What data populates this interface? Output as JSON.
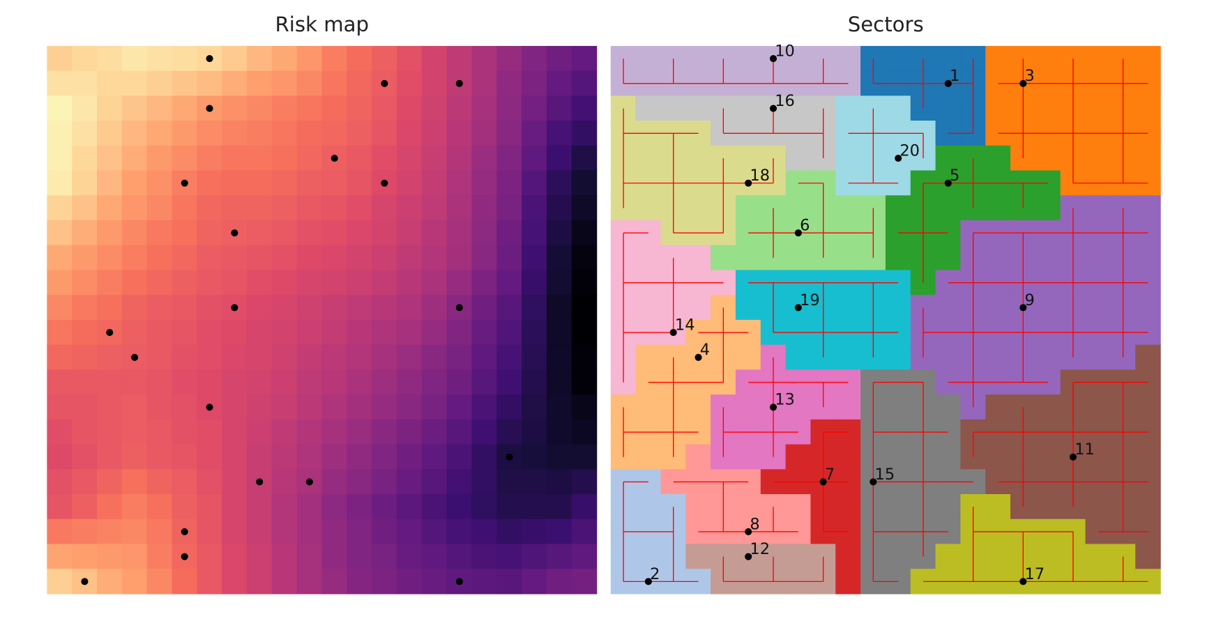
{
  "chart_data": [
    {
      "type": "heatmap",
      "title": "Risk map",
      "colormap": "magma",
      "zlim": [
        0,
        1
      ],
      "xlim": [
        -0.5,
        21.5
      ],
      "ylim": [
        21.5,
        -0.5
      ],
      "z": [
        [
          0.9,
          0.92,
          0.93,
          0.95,
          0.94,
          0.93,
          0.92,
          0.89,
          0.85,
          0.82,
          0.78,
          0.73,
          0.69,
          0.66,
          0.62,
          0.57,
          0.52,
          0.47,
          0.42,
          0.37,
          0.33,
          0.3
        ],
        [
          0.94,
          0.94,
          0.92,
          0.92,
          0.9,
          0.88,
          0.86,
          0.83,
          0.8,
          0.78,
          0.75,
          0.71,
          0.68,
          0.65,
          0.61,
          0.57,
          0.52,
          0.47,
          0.41,
          0.36,
          0.3,
          0.26
        ],
        [
          0.98,
          0.95,
          0.91,
          0.88,
          0.85,
          0.82,
          0.79,
          0.77,
          0.75,
          0.73,
          0.71,
          0.69,
          0.67,
          0.64,
          0.6,
          0.56,
          0.51,
          0.46,
          0.4,
          0.34,
          0.27,
          0.22
        ],
        [
          0.97,
          0.94,
          0.89,
          0.85,
          0.82,
          0.79,
          0.76,
          0.74,
          0.73,
          0.71,
          0.69,
          0.68,
          0.66,
          0.63,
          0.59,
          0.55,
          0.5,
          0.45,
          0.39,
          0.31,
          0.23,
          0.18
        ],
        [
          0.97,
          0.92,
          0.87,
          0.83,
          0.79,
          0.76,
          0.73,
          0.71,
          0.71,
          0.7,
          0.68,
          0.66,
          0.64,
          0.61,
          0.58,
          0.54,
          0.49,
          0.43,
          0.37,
          0.29,
          0.2,
          0.13
        ],
        [
          0.96,
          0.91,
          0.85,
          0.8,
          0.77,
          0.73,
          0.7,
          0.69,
          0.69,
          0.68,
          0.66,
          0.65,
          0.63,
          0.6,
          0.57,
          0.53,
          0.48,
          0.42,
          0.36,
          0.26,
          0.16,
          0.09
        ],
        [
          0.91,
          0.87,
          0.82,
          0.78,
          0.75,
          0.71,
          0.68,
          0.67,
          0.67,
          0.66,
          0.64,
          0.63,
          0.61,
          0.58,
          0.55,
          0.52,
          0.47,
          0.41,
          0.35,
          0.24,
          0.14,
          0.07
        ],
        [
          0.87,
          0.83,
          0.79,
          0.75,
          0.72,
          0.7,
          0.67,
          0.66,
          0.65,
          0.64,
          0.62,
          0.61,
          0.59,
          0.57,
          0.54,
          0.5,
          0.46,
          0.4,
          0.33,
          0.23,
          0.12,
          0.04
        ],
        [
          0.82,
          0.79,
          0.76,
          0.73,
          0.7,
          0.68,
          0.65,
          0.64,
          0.63,
          0.62,
          0.6,
          0.59,
          0.57,
          0.55,
          0.52,
          0.49,
          0.45,
          0.39,
          0.32,
          0.21,
          0.1,
          0.02
        ],
        [
          0.79,
          0.76,
          0.73,
          0.7,
          0.68,
          0.66,
          0.64,
          0.63,
          0.61,
          0.6,
          0.58,
          0.57,
          0.55,
          0.53,
          0.5,
          0.47,
          0.42,
          0.36,
          0.3,
          0.19,
          0.09,
          0.01
        ],
        [
          0.75,
          0.72,
          0.7,
          0.67,
          0.65,
          0.64,
          0.62,
          0.61,
          0.59,
          0.58,
          0.56,
          0.54,
          0.52,
          0.5,
          0.48,
          0.44,
          0.39,
          0.33,
          0.27,
          0.17,
          0.07,
          0
        ],
        [
          0.71,
          0.69,
          0.68,
          0.66,
          0.64,
          0.63,
          0.61,
          0.6,
          0.58,
          0.57,
          0.55,
          0.53,
          0.5,
          0.48,
          0.46,
          0.42,
          0.37,
          0.31,
          0.25,
          0.16,
          0.07,
          0
        ],
        [
          0.68,
          0.67,
          0.66,
          0.65,
          0.64,
          0.62,
          0.61,
          0.59,
          0.58,
          0.56,
          0.53,
          0.51,
          0.49,
          0.46,
          0.43,
          0.39,
          0.35,
          0.29,
          0.23,
          0.15,
          0.07,
          0.01
        ],
        [
          0.64,
          0.64,
          0.64,
          0.64,
          0.63,
          0.61,
          0.6,
          0.58,
          0.57,
          0.55,
          0.52,
          0.5,
          0.47,
          0.44,
          0.41,
          0.37,
          0.33,
          0.27,
          0.21,
          0.14,
          0.07,
          0.01
        ],
        [
          0.63,
          0.63,
          0.64,
          0.65,
          0.63,
          0.62,
          0.6,
          0.58,
          0.56,
          0.54,
          0.51,
          0.48,
          0.45,
          0.42,
          0.39,
          0.35,
          0.3,
          0.24,
          0.18,
          0.13,
          0.08,
          0.04
        ],
        [
          0.61,
          0.63,
          0.64,
          0.65,
          0.64,
          0.62,
          0.61,
          0.58,
          0.55,
          0.52,
          0.49,
          0.46,
          0.43,
          0.39,
          0.36,
          0.32,
          0.27,
          0.21,
          0.15,
          0.12,
          0.08,
          0.06
        ],
        [
          0.6,
          0.62,
          0.64,
          0.66,
          0.64,
          0.63,
          0.61,
          0.58,
          0.54,
          0.51,
          0.48,
          0.44,
          0.41,
          0.37,
          0.33,
          0.29,
          0.24,
          0.18,
          0.12,
          0.11,
          0.09,
          0.09
        ],
        [
          0.62,
          0.64,
          0.67,
          0.7,
          0.67,
          0.65,
          0.62,
          0.58,
          0.54,
          0.5,
          0.47,
          0.42,
          0.39,
          0.35,
          0.31,
          0.27,
          0.22,
          0.18,
          0.13,
          0.13,
          0.12,
          0.14
        ],
        [
          0.63,
          0.66,
          0.7,
          0.73,
          0.7,
          0.66,
          0.63,
          0.58,
          0.54,
          0.49,
          0.45,
          0.4,
          0.36,
          0.32,
          0.28,
          0.24,
          0.2,
          0.17,
          0.14,
          0.14,
          0.14,
          0.19
        ],
        [
          0.72,
          0.73,
          0.74,
          0.75,
          0.72,
          0.67,
          0.63,
          0.58,
          0.54,
          0.49,
          0.45,
          0.41,
          0.37,
          0.33,
          0.3,
          0.26,
          0.23,
          0.21,
          0.18,
          0.19,
          0.2,
          0.24
        ],
        [
          0.81,
          0.8,
          0.79,
          0.78,
          0.73,
          0.68,
          0.64,
          0.59,
          0.55,
          0.5,
          0.46,
          0.41,
          0.37,
          0.35,
          0.31,
          0.29,
          0.26,
          0.24,
          0.23,
          0.25,
          0.27,
          0.29
        ],
        [
          0.9,
          0.87,
          0.83,
          0.8,
          0.75,
          0.69,
          0.64,
          0.59,
          0.55,
          0.5,
          0.46,
          0.42,
          0.38,
          0.36,
          0.33,
          0.31,
          0.29,
          0.28,
          0.27,
          0.3,
          0.33,
          0.34
        ]
      ],
      "points": {
        "color": "#000000",
        "x": [
          13,
          1,
          16,
          3,
          13,
          7,
          8,
          5,
          16,
          6,
          18,
          5,
          6,
          2,
          10,
          6,
          16,
          5,
          7,
          11
        ],
        "y": [
          1,
          21,
          1,
          12,
          5,
          7,
          17,
          19,
          10,
          0,
          16,
          20,
          14,
          11,
          17,
          2,
          21,
          5,
          10,
          4
        ]
      }
    },
    {
      "type": "sectors",
      "title": "Sectors",
      "xlim": [
        -0.5,
        21.5
      ],
      "ylim": [
        21.5,
        -0.5
      ],
      "path_color": "#ff0000",
      "sector_colors": [
        "#1f77b4",
        "#aec7e8",
        "#ff7f0e",
        "#ffbb78",
        "#2ca02c",
        "#98df8a",
        "#d62728",
        "#ff9896",
        "#9467bd",
        "#c5b0d5",
        "#8c564b",
        "#c49c94",
        "#e377c2",
        "#f7b6d2",
        "#7f7f7f",
        "#c7c7c7",
        "#bcbd22",
        "#dbdb8d",
        "#17becf",
        "#9edae5"
      ],
      "sector_grid": [
        [
          10,
          10,
          10,
          10,
          10,
          10,
          10,
          10,
          10,
          10,
          1,
          1,
          1,
          1,
          1,
          3,
          3,
          3,
          3,
          3,
          3,
          3
        ],
        [
          10,
          10,
          10,
          10,
          10,
          10,
          10,
          10,
          10,
          10,
          1,
          1,
          1,
          1,
          1,
          3,
          3,
          3,
          3,
          3,
          3,
          3
        ],
        [
          18,
          16,
          16,
          16,
          16,
          16,
          16,
          16,
          16,
          20,
          20,
          20,
          1,
          1,
          1,
          3,
          3,
          3,
          3,
          3,
          3,
          3
        ],
        [
          18,
          18,
          18,
          18,
          16,
          16,
          16,
          16,
          16,
          20,
          20,
          20,
          20,
          1,
          1,
          3,
          3,
          3,
          3,
          3,
          3,
          3
        ],
        [
          18,
          18,
          18,
          18,
          18,
          18,
          18,
          16,
          16,
          20,
          20,
          20,
          20,
          5,
          5,
          5,
          3,
          3,
          3,
          3,
          3,
          3
        ],
        [
          18,
          18,
          18,
          18,
          18,
          18,
          18,
          6,
          6,
          20,
          20,
          20,
          5,
          5,
          5,
          5,
          5,
          5,
          3,
          3,
          3,
          3
        ],
        [
          18,
          18,
          18,
          18,
          18,
          6,
          6,
          6,
          6,
          6,
          6,
          5,
          5,
          5,
          5,
          5,
          5,
          5,
          9,
          9,
          9,
          9
        ],
        [
          14,
          14,
          18,
          18,
          18,
          6,
          6,
          6,
          6,
          6,
          6,
          5,
          5,
          5,
          9,
          9,
          9,
          9,
          9,
          9,
          9,
          9
        ],
        [
          14,
          14,
          14,
          14,
          6,
          6,
          6,
          6,
          6,
          6,
          6,
          5,
          5,
          5,
          9,
          9,
          9,
          9,
          9,
          9,
          9,
          9
        ],
        [
          14,
          14,
          14,
          14,
          14,
          19,
          19,
          19,
          19,
          19,
          19,
          19,
          5,
          9,
          9,
          9,
          9,
          9,
          9,
          9,
          9,
          9
        ],
        [
          14,
          14,
          14,
          14,
          4,
          19,
          19,
          19,
          19,
          19,
          19,
          19,
          9,
          9,
          9,
          9,
          9,
          9,
          9,
          9,
          9,
          9
        ],
        [
          14,
          14,
          14,
          4,
          4,
          4,
          19,
          19,
          19,
          19,
          19,
          19,
          9,
          9,
          9,
          9,
          9,
          9,
          9,
          9,
          9,
          9
        ],
        [
          14,
          4,
          4,
          4,
          4,
          4,
          13,
          19,
          19,
          19,
          19,
          19,
          9,
          9,
          9,
          9,
          9,
          9,
          9,
          9,
          9,
          11
        ],
        [
          14,
          4,
          4,
          4,
          4,
          13,
          13,
          13,
          13,
          13,
          15,
          15,
          15,
          9,
          9,
          9,
          9,
          9,
          11,
          11,
          11,
          11
        ],
        [
          4,
          4,
          4,
          4,
          13,
          13,
          13,
          13,
          13,
          13,
          15,
          15,
          15,
          15,
          9,
          11,
          11,
          11,
          11,
          11,
          11,
          11
        ],
        [
          4,
          4,
          4,
          4,
          13,
          13,
          13,
          13,
          7,
          7,
          15,
          15,
          15,
          15,
          11,
          11,
          11,
          11,
          11,
          11,
          11,
          11
        ],
        [
          4,
          4,
          4,
          8,
          13,
          13,
          13,
          7,
          7,
          7,
          15,
          15,
          15,
          15,
          11,
          11,
          11,
          11,
          11,
          11,
          11,
          11
        ],
        [
          2,
          2,
          8,
          8,
          8,
          8,
          7,
          7,
          7,
          7,
          15,
          15,
          15,
          15,
          15,
          11,
          11,
          11,
          11,
          11,
          11,
          11
        ],
        [
          2,
          2,
          2,
          8,
          8,
          8,
          8,
          8,
          7,
          7,
          15,
          15,
          15,
          15,
          17,
          17,
          11,
          11,
          11,
          11,
          11,
          11
        ],
        [
          2,
          2,
          2,
          8,
          8,
          8,
          8,
          8,
          7,
          7,
          15,
          15,
          15,
          15,
          17,
          17,
          17,
          17,
          17,
          11,
          11,
          11
        ],
        [
          2,
          2,
          2,
          12,
          12,
          12,
          12,
          12,
          12,
          7,
          15,
          15,
          15,
          17,
          17,
          17,
          17,
          17,
          17,
          17,
          17,
          11
        ],
        [
          2,
          2,
          2,
          2,
          12,
          12,
          12,
          12,
          12,
          7,
          15,
          15,
          17,
          17,
          17,
          17,
          17,
          17,
          17,
          17,
          17,
          17
        ]
      ],
      "points": {
        "color": "#000000",
        "x": [
          13,
          1,
          16,
          3,
          13,
          7,
          8,
          5,
          16,
          6,
          18,
          5,
          6,
          2,
          10,
          6,
          16,
          5,
          7,
          11
        ],
        "y": [
          1,
          21,
          1,
          12,
          5,
          7,
          17,
          19,
          10,
          0,
          16,
          20,
          14,
          11,
          17,
          2,
          21,
          5,
          10,
          4
        ],
        "labels": [
          "1",
          "2",
          "3",
          "4",
          "5",
          "6",
          "7",
          "8",
          "9",
          "10",
          "11",
          "12",
          "13",
          "14",
          "15",
          "16",
          "17",
          "18",
          "19",
          "20"
        ]
      }
    }
  ]
}
